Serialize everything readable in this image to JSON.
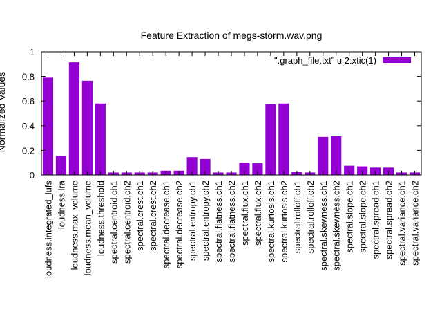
{
  "chart_data": {
    "type": "bar",
    "title": "Feature Extraction of megs-storm.wav.png",
    "ylabel": "Normalized Values",
    "xlabel": "",
    "ylim": [
      0,
      1
    ],
    "yticks": [
      "0",
      "0.2",
      "0.4",
      "0.6",
      "0.8",
      "1"
    ],
    "legend_position": "top-right",
    "grid": false,
    "categories": [
      "loudness.integrated_lufs",
      "loudness.lra",
      "loudness.max_volume",
      "loudness.mean_volume",
      "loudness.threshold",
      "spectral.centroid.ch1",
      "spectral.centroid.ch2",
      "spectral.crest.ch1",
      "spectral.crest.ch2",
      "spectral.decrease.ch1",
      "spectral.decrease.ch2",
      "spectral.entropy.ch1",
      "spectral.entropy.ch2",
      "spectral.flatness.ch1",
      "spectral.flatness.ch2",
      "spectral.flux.ch1",
      "spectral.flux.ch2",
      "spectral.kurtosis.ch1",
      "spectral.kurtosis.ch2",
      "spectral.rolloff.ch1",
      "spectral.rolloff.ch2",
      "spectral.skewness.ch1",
      "spectral.skewness.ch2",
      "spectral.slope.ch1",
      "spectral.slope.ch2",
      "spectral.spread.ch1",
      "spectral.spread.ch2",
      "spectral.variance.ch1",
      "spectral.variance.ch2"
    ],
    "series": [
      {
        "name": "\".graph_file.txt\" u 2:xtic(1)",
        "color": "#9400d3",
        "values": [
          0.79,
          0.155,
          0.915,
          0.765,
          0.58,
          0.02,
          0.02,
          0.02,
          0.02,
          0.035,
          0.035,
          0.145,
          0.13,
          0.02,
          0.02,
          0.1,
          0.095,
          0.575,
          0.58,
          0.025,
          0.02,
          0.31,
          0.315,
          0.075,
          0.07,
          0.06,
          0.06,
          0.02,
          0.02
        ]
      }
    ]
  }
}
